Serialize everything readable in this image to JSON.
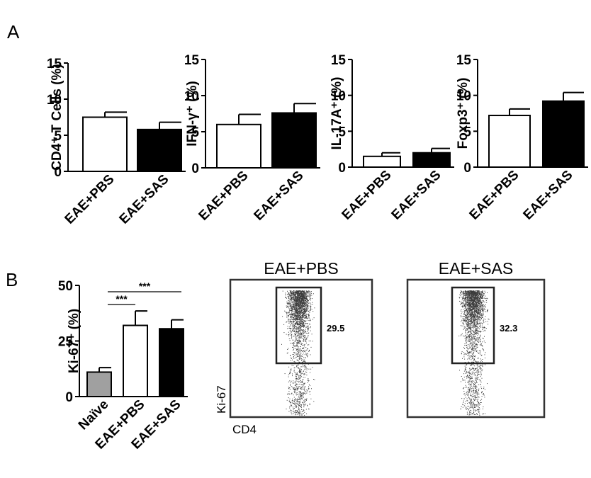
{
  "panel_labels": {
    "a": "A",
    "b": "B"
  },
  "chart_data": [
    {
      "id": "cd4",
      "type": "bar",
      "title": "",
      "ylabel": "CD4⁺ T Cells (%)",
      "ylim": [
        0,
        15
      ],
      "yticks": [
        0,
        5,
        10,
        15
      ],
      "categories": [
        "EAE+PBS",
        "EAE+SAS"
      ],
      "values": [
        7.5,
        5.8
      ],
      "errors": [
        0.7,
        1.0
      ],
      "bar_colors": [
        "#ffffff",
        "#000000"
      ]
    },
    {
      "id": "ifng",
      "type": "bar",
      "title": "",
      "ylabel": "IFN-γ⁺ (%)",
      "ylim": [
        0,
        15
      ],
      "yticks": [
        0,
        5,
        10,
        15
      ],
      "categories": [
        "EAE+PBS",
        "EAE+SAS"
      ],
      "values": [
        6.0,
        7.6
      ],
      "errors": [
        1.4,
        1.3
      ],
      "bar_colors": [
        "#ffffff",
        "#000000"
      ]
    },
    {
      "id": "il17a",
      "type": "bar",
      "title": "",
      "ylabel": "IL-17A⁺ (%)",
      "ylim": [
        0,
        15
      ],
      "yticks": [
        0,
        5,
        10,
        15
      ],
      "categories": [
        "EAE+PBS",
        "EAE+SAS"
      ],
      "values": [
        1.5,
        2.0
      ],
      "errors": [
        0.5,
        0.6
      ],
      "bar_colors": [
        "#ffffff",
        "#000000"
      ]
    },
    {
      "id": "foxp3",
      "type": "bar",
      "title": "",
      "ylabel": "Foxp3⁺ (%)",
      "ylim": [
        0,
        15
      ],
      "yticks": [
        0,
        5,
        10,
        15
      ],
      "categories": [
        "EAE+PBS",
        "EAE+SAS"
      ],
      "values": [
        7.2,
        9.2
      ],
      "errors": [
        0.9,
        1.2
      ],
      "bar_colors": [
        "#ffffff",
        "#000000"
      ]
    },
    {
      "id": "ki67",
      "type": "bar",
      "title": "",
      "ylabel": "Ki-67⁺ (%)",
      "ylim": [
        0,
        50
      ],
      "yticks": [
        0,
        25,
        50
      ],
      "categories": [
        "Naïve",
        "EAE+PBS",
        "EAE+SAS"
      ],
      "values": [
        11,
        32,
        30.5
      ],
      "errors": [
        2,
        6.5,
        4
      ],
      "bar_colors": [
        "#a0a0a0",
        "#ffffff",
        "#000000"
      ],
      "significance": [
        {
          "from": "Naïve",
          "to": "EAE+PBS",
          "label": "***"
        },
        {
          "from": "Naïve",
          "to": "EAE+SAS",
          "label": "***"
        }
      ]
    }
  ],
  "flow_plots": {
    "x_label": "CD4",
    "y_label": "Ki-67",
    "plots": [
      {
        "title": "EAE+PBS",
        "gate_percent": "29.5"
      },
      {
        "title": "EAE+SAS",
        "gate_percent": "32.3"
      }
    ]
  }
}
